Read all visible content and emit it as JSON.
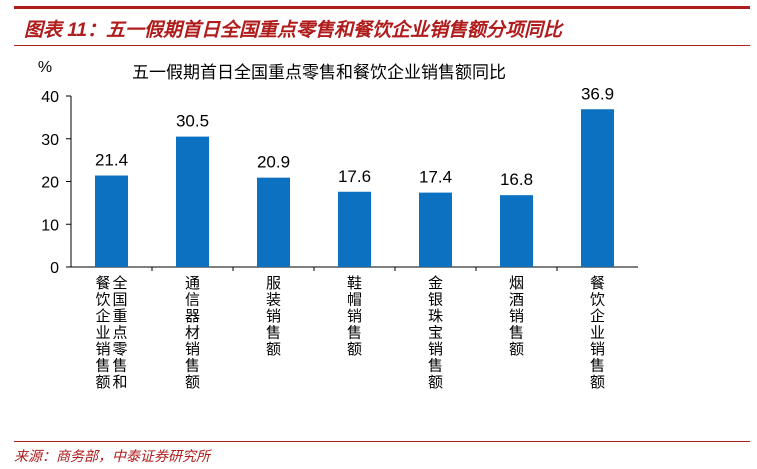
{
  "figure": {
    "title": "图表 11：五一假期首日全国重点零售和餐饮企业销售额分项同比"
  },
  "source": {
    "text": "来源：商务部，中泰证券研究所"
  },
  "colors": {
    "bar": "#0B71C0",
    "accent": "#B01C1C",
    "axis": "#000000"
  },
  "chart_data": {
    "type": "bar",
    "title": "五一假期首日全国重点零售和餐饮企业销售额同比",
    "ylabel": "%",
    "xlabel": "",
    "ylim": [
      0,
      40
    ],
    "yticks": [
      0,
      10,
      20,
      30,
      40
    ],
    "grid": false,
    "categories": [
      "全国重点零售和餐饮企业销售额",
      "通信器材销售额",
      "服装销售额",
      "鞋帽销售额",
      "金银珠宝销售额",
      "烟酒销售额",
      "餐饮企业销售额"
    ],
    "values": [
      21.4,
      30.5,
      20.9,
      17.6,
      17.4,
      16.8,
      36.9
    ]
  }
}
